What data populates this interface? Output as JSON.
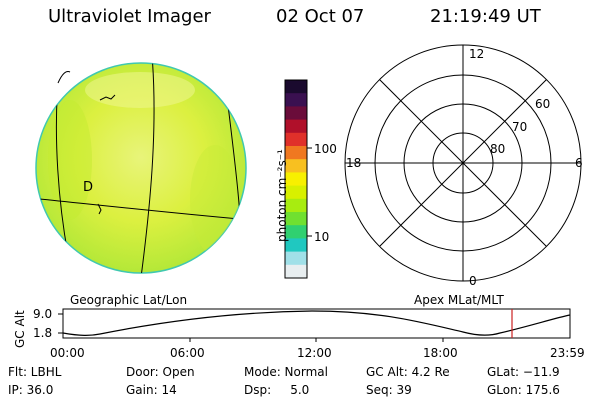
{
  "header": {
    "title": "Ultraviolet Imager",
    "date": "02 Oct 07",
    "time": "21:19:49 UT"
  },
  "colorbar": {
    "unit_label": "photon cm⁻²s⁻¹",
    "ticks": [
      "100",
      "10"
    ],
    "colors": [
      "#1a0a2e",
      "#3a1050",
      "#6a0c3a",
      "#b0102a",
      "#e0302a",
      "#f07820",
      "#f8c020",
      "#f8f000",
      "#d8f000",
      "#a8ec10",
      "#70e030",
      "#30d070",
      "#20c8c0",
      "#a0e0e8",
      "#e8eef0"
    ]
  },
  "left_panel": {
    "label": "Geographic Lat/Lon",
    "disk_color": "#dff040",
    "marks": [
      "D"
    ]
  },
  "right_panel": {
    "label": "Apex MLat/MLT",
    "mlt": {
      "top": "12",
      "left": "18",
      "right": "6",
      "bottom": "0"
    },
    "lat": [
      "60",
      "70",
      "80"
    ]
  },
  "altitude_plot": {
    "axis_label": "GC Alt",
    "ymax": "9.0",
    "ymin": "1.8",
    "x_ticks": [
      "00:00",
      "06:00",
      "12:00",
      "18:00",
      "23:59"
    ],
    "marker_color": "#cc2222"
  },
  "info": {
    "flt": "Flt: LBHL",
    "door": "Door: Open",
    "mode": "Mode: Normal",
    "gc_alt": "GC Alt: 4.2 Re",
    "glat": "GLat: −11.9",
    "ip": "IP: 36.0",
    "gain": "Gain: 14",
    "dsp": "Dsp:     5.0",
    "seq": "Seq: 39",
    "glon": "GLon: 175.6"
  }
}
